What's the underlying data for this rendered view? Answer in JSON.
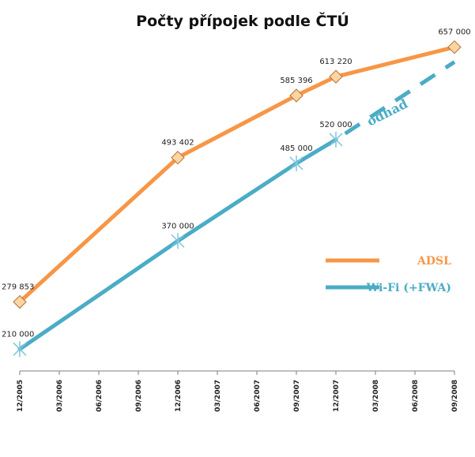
{
  "chart_data": {
    "type": "line",
    "title": "Počty přípojek podle ČTÚ",
    "categories": [
      "12/2005",
      "03/2006",
      "06/2006",
      "09/2006",
      "12/2006",
      "03/2007",
      "06/2007",
      "09/2007",
      "12/2007",
      "03/2008",
      "06/2008",
      "09/2008"
    ],
    "series": [
      {
        "name": "ADSL",
        "color": "#f79646",
        "marker": "diamond",
        "points": [
          {
            "x": "12/2005",
            "y": 279853,
            "label": "279 853"
          },
          {
            "x": "12/2006",
            "y": 493402,
            "label": "493 402"
          },
          {
            "x": "09/2007",
            "y": 585396,
            "label": "585 396"
          },
          {
            "x": "12/2007",
            "y": 613220,
            "label": "613 220"
          },
          {
            "x": "09/2008",
            "y": 657000,
            "label": "657 000"
          }
        ]
      },
      {
        "name": "Wi-Fi (+FWA)",
        "color": "#4bacc6",
        "marker": "star",
        "points": [
          {
            "x": "12/2005",
            "y": 210000,
            "label": "210 000"
          },
          {
            "x": "12/2006",
            "y": 370000,
            "label": "370 000"
          },
          {
            "x": "09/2007",
            "y": 485000,
            "label": "485 000"
          },
          {
            "x": "12/2007",
            "y": 520000,
            "label": "520 000"
          }
        ],
        "estimate": [
          {
            "x": "12/2007",
            "y": 520000
          },
          {
            "x": "09/2008",
            "y": 635000
          }
        ]
      }
    ],
    "annotation": "odhad",
    "ylim": [
      180000,
      680000
    ],
    "grid": false,
    "legend_position": "right"
  }
}
